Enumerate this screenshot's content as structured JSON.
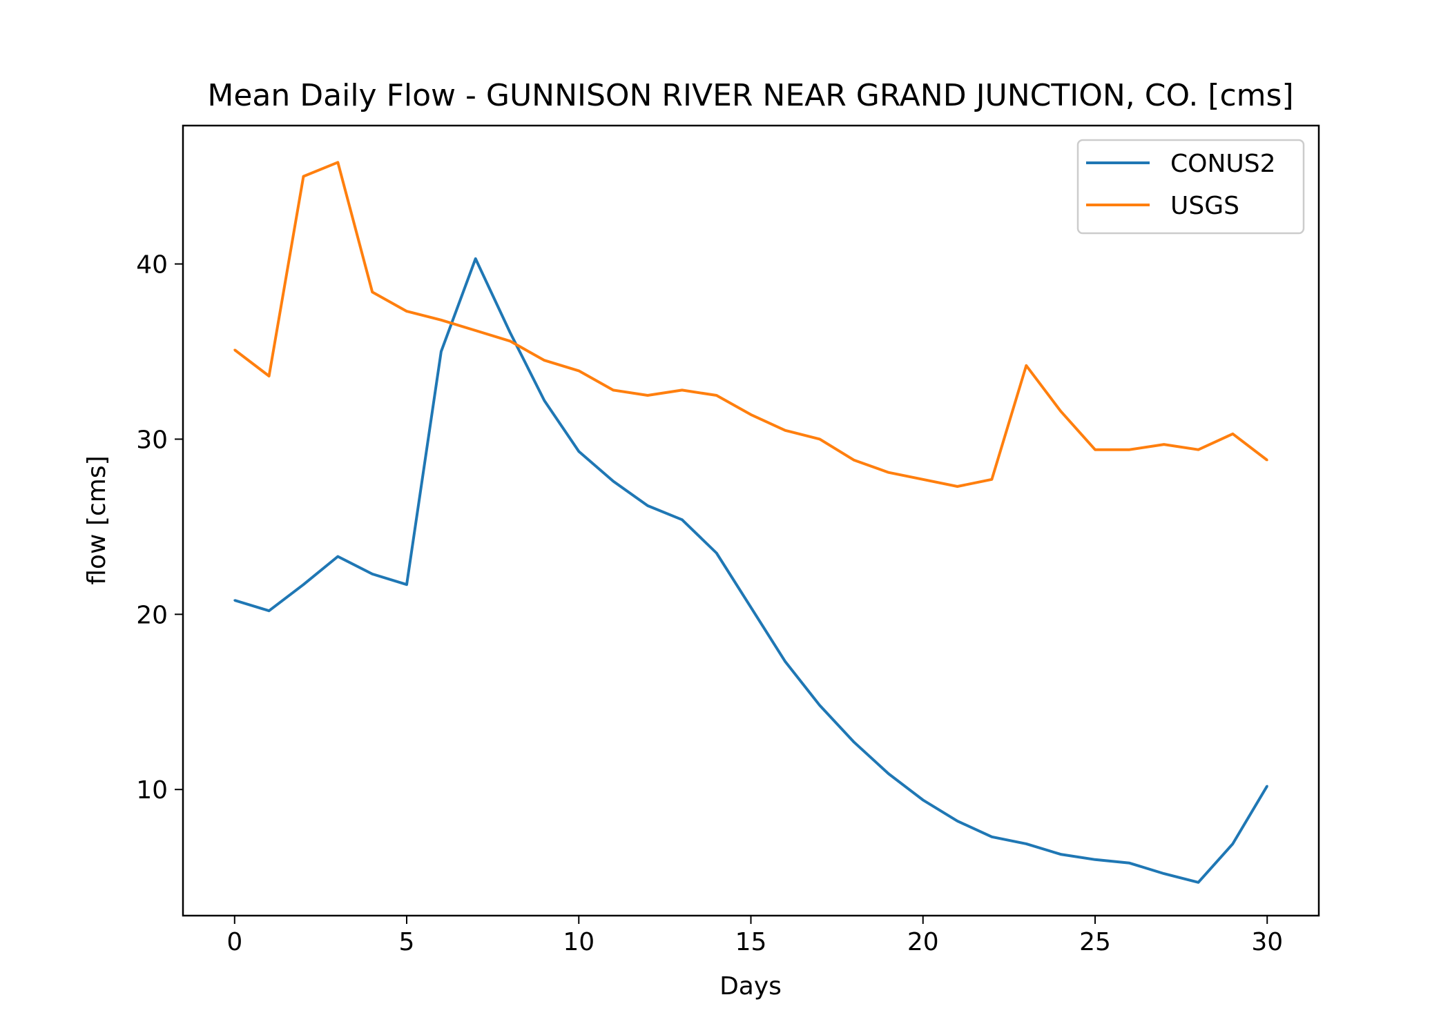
{
  "chart_data": {
    "type": "line",
    "title": "Mean Daily Flow - GUNNISON RIVER NEAR GRAND JUNCTION, CO. [cms]",
    "xlabel": "Days",
    "ylabel": "flow [cms]",
    "xlim": [
      -1.5,
      31.5
    ],
    "ylim": [
      2.8,
      47.9
    ],
    "xticks": [
      0,
      5,
      10,
      15,
      20,
      25,
      30
    ],
    "yticks": [
      10,
      20,
      30,
      40
    ],
    "grid": false,
    "legend_position": "top-right",
    "x": [
      0,
      1,
      2,
      3,
      4,
      5,
      6,
      7,
      8,
      9,
      10,
      11,
      12,
      13,
      14,
      15,
      16,
      17,
      18,
      19,
      20,
      21,
      22,
      23,
      24,
      25,
      26,
      27,
      28,
      29,
      30
    ],
    "series": [
      {
        "name": "CONUS2",
        "color": "#1f77b4",
        "values": [
          20.8,
          20.2,
          21.7,
          23.3,
          22.3,
          21.7,
          35.0,
          40.3,
          36.1,
          32.2,
          29.3,
          27.6,
          26.2,
          25.4,
          23.5,
          20.4,
          17.3,
          14.8,
          12.7,
          10.9,
          9.4,
          8.2,
          7.3,
          6.9,
          6.3,
          6.0,
          5.8,
          5.2,
          4.7,
          6.9,
          10.2
        ]
      },
      {
        "name": "USGS",
        "color": "#ff7f0e",
        "values": [
          35.1,
          33.6,
          45.0,
          45.8,
          38.4,
          37.3,
          36.8,
          36.2,
          35.6,
          34.5,
          33.9,
          32.8,
          32.5,
          32.8,
          32.5,
          31.4,
          30.5,
          30.0,
          28.8,
          28.1,
          27.7,
          27.3,
          27.7,
          34.2,
          31.6,
          29.4,
          29.4,
          29.7,
          29.4,
          30.3,
          28.8
        ]
      }
    ]
  }
}
